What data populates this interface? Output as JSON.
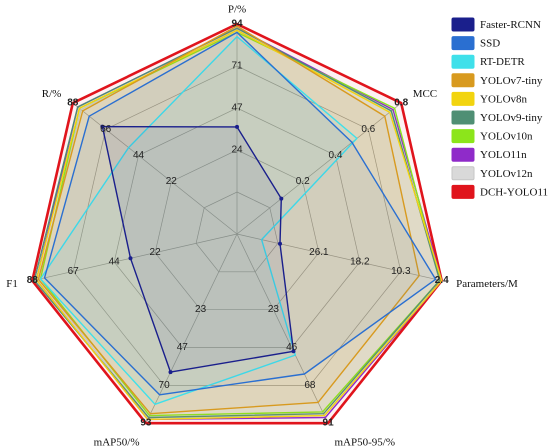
{
  "chart_data": {
    "type": "radar",
    "title": "",
    "axes": [
      {
        "name": "P/%",
        "ticks": [
          "94",
          "71",
          "47",
          "24"
        ]
      },
      {
        "name": "MCC",
        "ticks": [
          "0.8",
          "0.6",
          "0.4",
          "0.2"
        ]
      },
      {
        "name": "Parameters/M",
        "ticks": [
          "2.4",
          "10.3",
          "18.2",
          "26.1"
        ]
      },
      {
        "name": "mAP50-95/%",
        "ticks": [
          "91",
          "68",
          "46",
          "23"
        ]
      },
      {
        "name": "mAP50/%",
        "ticks": [
          "93",
          "70",
          "47",
          "23"
        ]
      },
      {
        "name": "F1",
        "ticks": [
          "88",
          "67",
          "44",
          "22"
        ]
      },
      {
        "name": "R/%",
        "ticks": [
          "88",
          "66",
          "44",
          "22"
        ]
      }
    ],
    "series": [
      {
        "name": "Faster-RCNN",
        "color": "#1a1f8c",
        "values": [
          0.51,
          0.27,
          0.21,
          0.62,
          0.73,
          0.52,
          0.82
        ]
      },
      {
        "name": "SSD",
        "color": "#2a6fd1",
        "values": [
          0.96,
          0.7,
          0.97,
          0.74,
          0.85,
          0.94,
          0.9
        ]
      },
      {
        "name": "RT-DETR",
        "color": "#3fe0ea",
        "values": [
          0.94,
          0.73,
          0.12,
          0.64,
          0.9,
          0.96,
          0.66
        ]
      },
      {
        "name": "YOLOv7-tiny",
        "color": "#d89a1f",
        "values": [
          0.99,
          0.9,
          0.89,
          0.89,
          0.95,
          0.97,
          0.94
        ]
      },
      {
        "name": "YOLOv8n",
        "color": "#f2d40f",
        "values": [
          0.97,
          0.93,
          1.0,
          0.96,
          0.98,
          0.98,
          0.96
        ]
      },
      {
        "name": "YOLOv9-tiny",
        "color": "#4f8f74",
        "values": [
          0.98,
          0.94,
          0.99,
          0.95,
          0.97,
          0.99,
          0.97
        ]
      },
      {
        "name": "YOLOv10n",
        "color": "#8ce51b",
        "values": [
          0.96,
          0.96,
          0.99,
          0.94,
          0.96,
          0.96,
          0.96
        ]
      },
      {
        "name": "YOLO11n",
        "color": "#8f2bc9",
        "values": [
          0.98,
          0.95,
          1.0,
          0.97,
          0.98,
          0.98,
          0.97
        ]
      },
      {
        "name": "YOLOv12n",
        "color": "#d9d9d9",
        "values": [
          0.97,
          0.94,
          0.99,
          0.96,
          0.97,
          0.97,
          0.95
        ]
      },
      {
        "name": "DCH-YOLO11",
        "color": "#e0141c",
        "values": [
          1.0,
          1.0,
          1.0,
          1.0,
          1.0,
          1.0,
          1.0
        ]
      }
    ]
  }
}
